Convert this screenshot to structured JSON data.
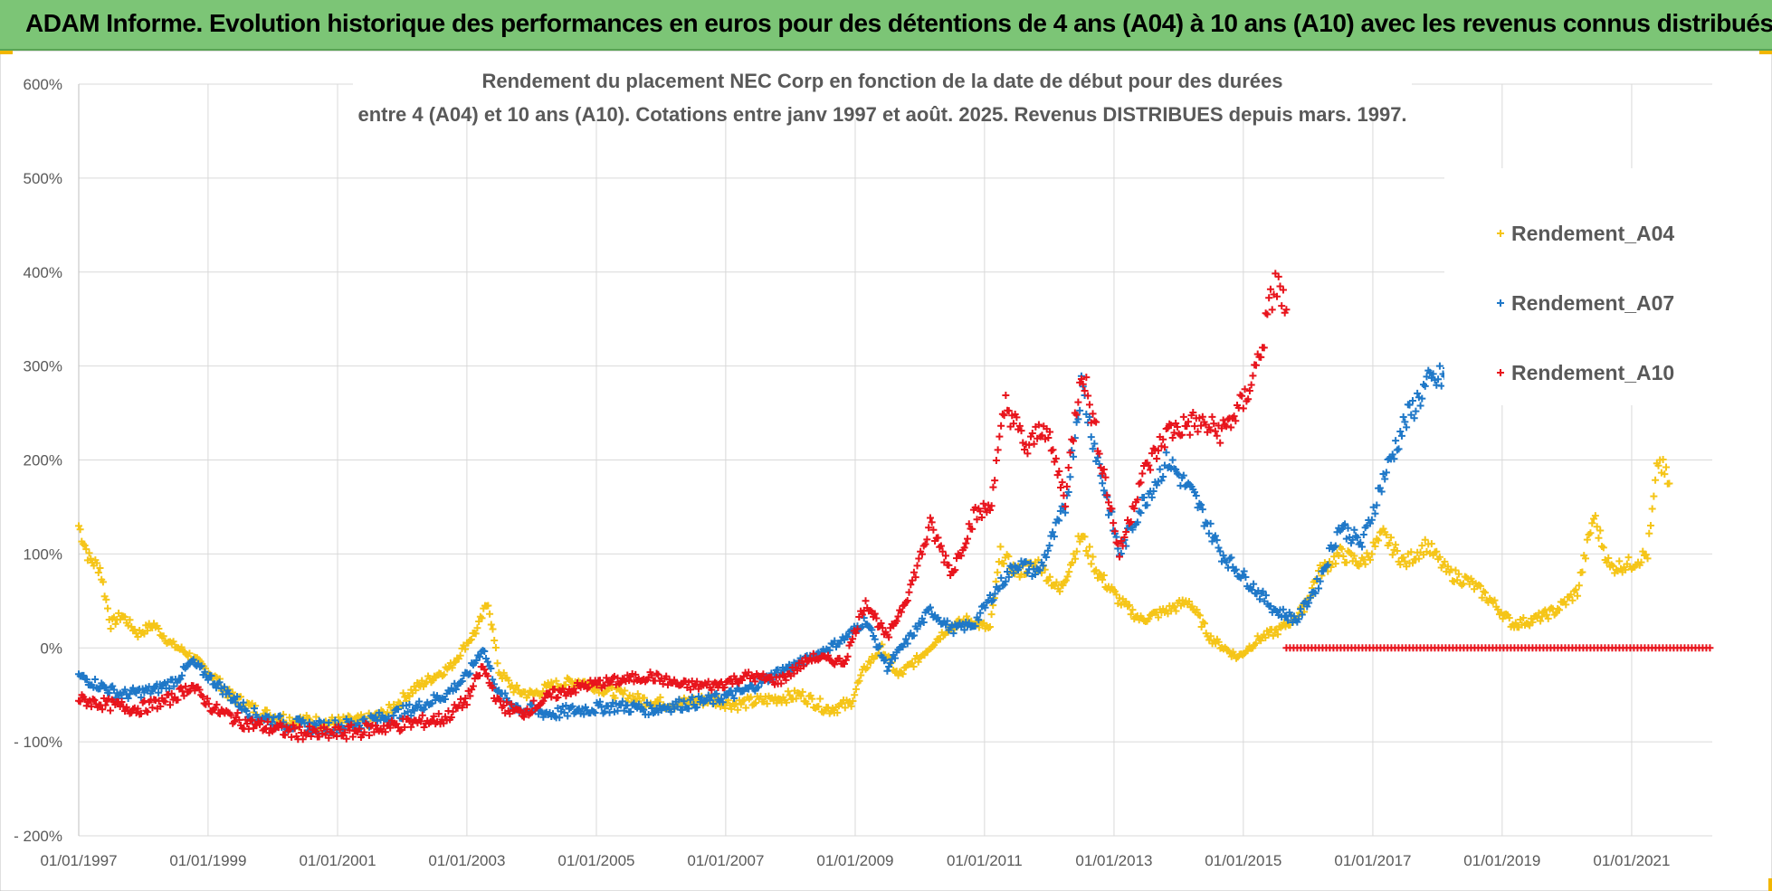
{
  "banner": {
    "title": "ADAM Informe. Evolution historique des performances en euros pour des détentions de 4 ans (A04) à 10 ans (A10) avec les revenus connus distribués"
  },
  "colors": {
    "banner_bg": "#7cc576",
    "grid": "#d9d9d9",
    "axis": "#595959"
  },
  "chart_data": {
    "type": "scatter",
    "title_line1": "Rendement du placement NEC Corp en fonction de la date de début pour des durées",
    "title_line2": "entre 4 (A04) et 10 ans (A10). Cotations entre janv 1997 et août. 2025. Revenus DISTRIBUES depuis mars. 1997.",
    "xlabel": "",
    "ylabel": "",
    "xlim": [
      "1997-01-01",
      "2022-04-01"
    ],
    "ylim": [
      -200,
      600
    ],
    "y_ticks": [
      -200,
      -100,
      0,
      100,
      200,
      300,
      400,
      500,
      600
    ],
    "y_tick_labels": [
      "- 200%",
      "- 100%",
      "0%",
      "100%",
      "200%",
      "300%",
      "400%",
      "500%",
      "600%"
    ],
    "x_ticks": [
      "1997-01-01",
      "1999-01-01",
      "2001-01-01",
      "2003-01-01",
      "2005-01-01",
      "2007-01-01",
      "2009-01-01",
      "2011-01-01",
      "2013-01-01",
      "2015-01-01",
      "2017-01-01",
      "2019-01-01",
      "2021-01-01"
    ],
    "x_tick_labels": [
      "01/01/1997",
      "01/01/1999",
      "01/01/2001",
      "01/01/2003",
      "01/01/2005",
      "01/01/2007",
      "01/01/2009",
      "01/01/2011",
      "01/01/2013",
      "01/01/2015",
      "01/01/2017",
      "01/01/2019",
      "01/01/2021"
    ],
    "grid": true,
    "legend_position": "top-right",
    "marker": "+",
    "series": [
      {
        "name": "Rendement_A04",
        "color": "#f5c518",
        "points": [
          [
            "1997-01-01",
            130
          ],
          [
            "1997-03-01",
            95
          ],
          [
            "1997-05-01",
            85
          ],
          [
            "1997-07-01",
            25
          ],
          [
            "1997-09-01",
            35
          ],
          [
            "1997-12-01",
            15
          ],
          [
            "1998-03-01",
            25
          ],
          [
            "1998-06-01",
            5
          ],
          [
            "1998-09-01",
            -5
          ],
          [
            "1998-11-01",
            -15
          ],
          [
            "1999-02-01",
            -30
          ],
          [
            "1999-05-01",
            -50
          ],
          [
            "1999-08-01",
            -60
          ],
          [
            "1999-11-01",
            -70
          ],
          [
            "2000-03-01",
            -75
          ],
          [
            "2000-07-01",
            -78
          ],
          [
            "2000-12-01",
            -80
          ],
          [
            "2001-06-01",
            -78
          ],
          [
            "2001-10-01",
            -70
          ],
          [
            "2002-03-01",
            -45
          ],
          [
            "2002-07-01",
            -30
          ],
          [
            "2002-10-01",
            -20
          ],
          [
            "2003-01-01",
            5
          ],
          [
            "2003-03-01",
            20
          ],
          [
            "2003-05-01",
            50
          ],
          [
            "2003-07-01",
            -25
          ],
          [
            "2003-10-01",
            -45
          ],
          [
            "2004-01-01",
            -50
          ],
          [
            "2004-05-01",
            -40
          ],
          [
            "2004-10-01",
            -35
          ],
          [
            "2005-03-01",
            -45
          ],
          [
            "2005-09-01",
            -55
          ],
          [
            "2006-03-01",
            -60
          ],
          [
            "2006-10-01",
            -55
          ],
          [
            "2007-03-01",
            -60
          ],
          [
            "2007-09-01",
            -55
          ],
          [
            "2008-03-01",
            -50
          ],
          [
            "2008-08-01",
            -65
          ],
          [
            "2008-12-01",
            -60
          ],
          [
            "2009-03-01",
            -20
          ],
          [
            "2009-06-01",
            0
          ],
          [
            "2009-09-01",
            -30
          ],
          [
            "2010-01-01",
            -10
          ],
          [
            "2010-06-01",
            20
          ],
          [
            "2010-10-01",
            30
          ],
          [
            "2011-02-01",
            20
          ],
          [
            "2011-04-01",
            100
          ],
          [
            "2011-07-01",
            80
          ],
          [
            "2011-11-01",
            90
          ],
          [
            "2012-03-01",
            60
          ],
          [
            "2012-07-01",
            120
          ],
          [
            "2012-10-01",
            80
          ],
          [
            "2013-02-01",
            50
          ],
          [
            "2013-06-01",
            30
          ],
          [
            "2013-11-01",
            40
          ],
          [
            "2014-03-01",
            50
          ],
          [
            "2014-07-01",
            10
          ],
          [
            "2014-12-01",
            -10
          ],
          [
            "2015-04-01",
            10
          ],
          [
            "2015-08-01",
            20
          ],
          [
            "2015-12-01",
            40
          ],
          [
            "2016-03-01",
            80
          ],
          [
            "2016-07-01",
            100
          ],
          [
            "2016-11-01",
            90
          ],
          [
            "2017-03-01",
            120
          ],
          [
            "2017-07-01",
            90
          ],
          [
            "2017-11-01",
            110
          ],
          [
            "2018-03-01",
            80
          ],
          [
            "2018-07-01",
            70
          ],
          [
            "2018-11-01",
            50
          ],
          [
            "2019-03-01",
            25
          ],
          [
            "2019-07-01",
            30
          ],
          [
            "2019-11-01",
            40
          ],
          [
            "2020-03-01",
            60
          ],
          [
            "2020-06-01",
            140
          ],
          [
            "2020-09-01",
            85
          ],
          [
            "2021-01-01",
            90
          ],
          [
            "2021-04-01",
            100
          ],
          [
            "2021-06-01",
            200
          ],
          [
            "2021-08-01",
            175
          ]
        ]
      },
      {
        "name": "Rendement_A07",
        "color": "#1f78c8",
        "points": [
          [
            "1997-01-01",
            -30
          ],
          [
            "1997-05-01",
            -40
          ],
          [
            "1997-09-01",
            -50
          ],
          [
            "1998-03-01",
            -45
          ],
          [
            "1998-07-01",
            -35
          ],
          [
            "1998-10-01",
            -15
          ],
          [
            "1999-01-01",
            -30
          ],
          [
            "1999-05-01",
            -50
          ],
          [
            "1999-09-01",
            -70
          ],
          [
            "2000-03-01",
            -80
          ],
          [
            "2000-09-01",
            -85
          ],
          [
            "2001-03-01",
            -82
          ],
          [
            "2001-09-01",
            -75
          ],
          [
            "2002-03-01",
            -65
          ],
          [
            "2002-09-01",
            -50
          ],
          [
            "2003-01-01",
            -30
          ],
          [
            "2003-04-01",
            0
          ],
          [
            "2003-07-01",
            -50
          ],
          [
            "2003-11-01",
            -65
          ],
          [
            "2004-05-01",
            -70
          ],
          [
            "2004-11-01",
            -65
          ],
          [
            "2005-05-01",
            -62
          ],
          [
            "2005-11-01",
            -65
          ],
          [
            "2006-05-01",
            -60
          ],
          [
            "2006-11-01",
            -55
          ],
          [
            "2007-05-01",
            -45
          ],
          [
            "2007-11-01",
            -25
          ],
          [
            "2008-05-01",
            -10
          ],
          [
            "2008-11-01",
            10
          ],
          [
            "2009-03-01",
            30
          ],
          [
            "2009-07-01",
            -20
          ],
          [
            "2009-11-01",
            10
          ],
          [
            "2010-03-01",
            40
          ],
          [
            "2010-07-01",
            20
          ],
          [
            "2010-11-01",
            25
          ],
          [
            "2011-03-01",
            60
          ],
          [
            "2011-07-01",
            90
          ],
          [
            "2011-11-01",
            80
          ],
          [
            "2012-04-01",
            150
          ],
          [
            "2012-07-01",
            280
          ],
          [
            "2012-10-01",
            200
          ],
          [
            "2013-02-01",
            100
          ],
          [
            "2013-06-01",
            150
          ],
          [
            "2013-11-01",
            200
          ],
          [
            "2014-04-01",
            160
          ],
          [
            "2014-09-01",
            100
          ],
          [
            "2015-02-01",
            70
          ],
          [
            "2015-07-01",
            40
          ],
          [
            "2015-11-01",
            30
          ],
          [
            "2016-03-01",
            70
          ],
          [
            "2016-07-01",
            130
          ],
          [
            "2016-11-01",
            110
          ],
          [
            "2017-03-01",
            180
          ],
          [
            "2017-07-01",
            240
          ],
          [
            "2017-11-01",
            280
          ],
          [
            "2018-03-01",
            290
          ],
          [
            "2018-05-01",
            300
          ]
        ]
      },
      {
        "name": "Rendement_A10",
        "color": "#e8141c",
        "points": [
          [
            "1997-01-01",
            -55
          ],
          [
            "1997-06-01",
            -60
          ],
          [
            "1997-12-01",
            -65
          ],
          [
            "1998-06-01",
            -55
          ],
          [
            "1998-10-01",
            -40
          ],
          [
            "1999-02-01",
            -65
          ],
          [
            "1999-08-01",
            -80
          ],
          [
            "2000-03-01",
            -88
          ],
          [
            "2000-09-01",
            -92
          ],
          [
            "2001-03-01",
            -90
          ],
          [
            "2001-09-01",
            -85
          ],
          [
            "2002-03-01",
            -80
          ],
          [
            "2002-09-01",
            -75
          ],
          [
            "2003-01-01",
            -55
          ],
          [
            "2003-04-01",
            -20
          ],
          [
            "2003-07-01",
            -60
          ],
          [
            "2003-11-01",
            -70
          ],
          [
            "2004-05-01",
            -50
          ],
          [
            "2004-11-01",
            -40
          ],
          [
            "2005-05-01",
            -35
          ],
          [
            "2005-11-01",
            -30
          ],
          [
            "2006-05-01",
            -40
          ],
          [
            "2006-11-01",
            -40
          ],
          [
            "2007-05-01",
            -30
          ],
          [
            "2007-11-01",
            -35
          ],
          [
            "2008-05-01",
            -10
          ],
          [
            "2008-11-01",
            -15
          ],
          [
            "2009-03-01",
            50
          ],
          [
            "2009-07-01",
            10
          ],
          [
            "2009-11-01",
            60
          ],
          [
            "2010-03-01",
            130
          ],
          [
            "2010-07-01",
            80
          ],
          [
            "2010-11-01",
            140
          ],
          [
            "2011-02-01",
            150
          ],
          [
            "2011-05-01",
            260
          ],
          [
            "2011-09-01",
            210
          ],
          [
            "2011-12-01",
            240
          ],
          [
            "2012-04-01",
            160
          ],
          [
            "2012-07-01",
            300
          ],
          [
            "2012-10-01",
            220
          ],
          [
            "2013-02-01",
            100
          ],
          [
            "2013-06-01",
            180
          ],
          [
            "2013-11-01",
            230
          ],
          [
            "2014-04-01",
            240
          ],
          [
            "2014-09-01",
            230
          ],
          [
            "2015-01-01",
            260
          ],
          [
            "2015-04-01",
            310
          ],
          [
            "2015-07-01",
            390
          ],
          [
            "2015-09-01",
            360
          ]
        ],
        "flat_segment": {
          "from": "2015-09-01",
          "to": "2022-04-01",
          "value": 0
        }
      }
    ]
  }
}
